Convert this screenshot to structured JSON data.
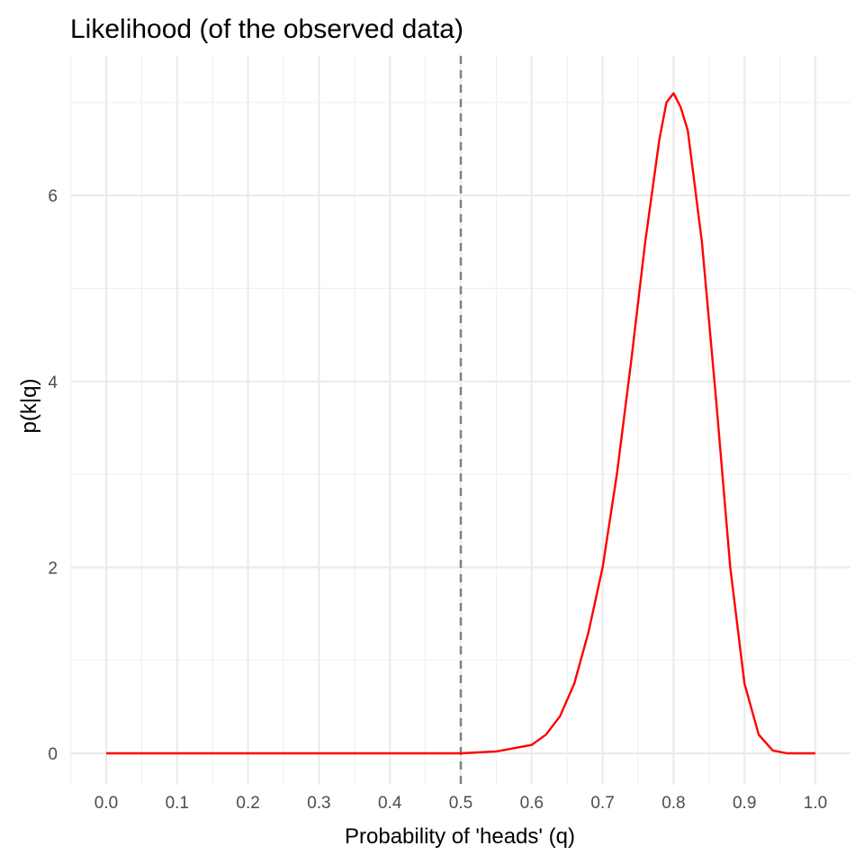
{
  "chart_data": {
    "type": "line",
    "title": "Likelihood (of the observed data)",
    "xlabel": "Probability of 'heads' (q)",
    "ylabel": "p(k|q)",
    "xlim": [
      0.0,
      1.0
    ],
    "ylim": [
      0,
      7.1
    ],
    "x_ticks": [
      "0.0",
      "0.1",
      "0.2",
      "0.3",
      "0.4",
      "0.5",
      "0.6",
      "0.7",
      "0.8",
      "0.9",
      "1.0"
    ],
    "y_ticks": [
      "0",
      "2",
      "4",
      "6"
    ],
    "grid": true,
    "legend": "none",
    "reference_line": {
      "x": 0.5,
      "style": "dashed",
      "color": "#808080"
    },
    "series": [
      {
        "color": "#ff0000",
        "x": [
          0.0,
          0.1,
          0.2,
          0.3,
          0.4,
          0.5,
          0.55,
          0.6,
          0.62,
          0.64,
          0.66,
          0.68,
          0.7,
          0.72,
          0.74,
          0.76,
          0.78,
          0.79,
          0.8,
          0.81,
          0.82,
          0.84,
          0.86,
          0.88,
          0.9,
          0.92,
          0.94,
          0.96,
          0.98,
          1.0
        ],
        "y": [
          0,
          0,
          0,
          0,
          0,
          0,
          0.02,
          0.09,
          0.2,
          0.4,
          0.75,
          1.3,
          2.0,
          3.0,
          4.2,
          5.5,
          6.6,
          7.0,
          7.1,
          6.95,
          6.7,
          5.5,
          3.8,
          2.0,
          0.75,
          0.2,
          0.03,
          0.0,
          0.0,
          0.0
        ]
      }
    ]
  }
}
